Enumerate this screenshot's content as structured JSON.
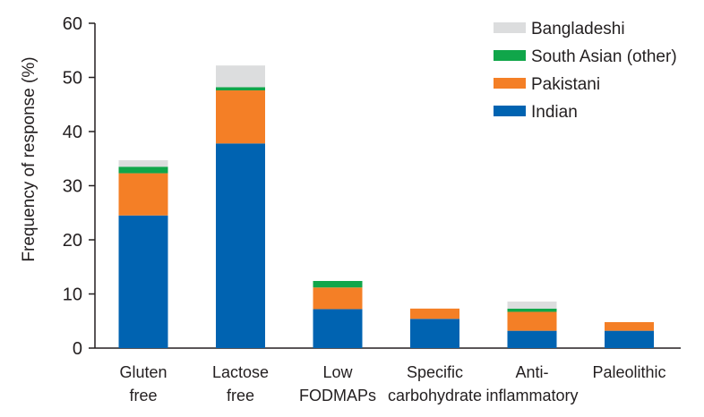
{
  "chart_data": {
    "type": "bar",
    "stacked": true,
    "title": "",
    "xlabel": "",
    "ylabel": "Frequency of response (%)",
    "ylim": [
      0,
      60
    ],
    "yticks": [
      0,
      10,
      20,
      30,
      40,
      50,
      60
    ],
    "grid": false,
    "legend_position": "top-right",
    "categories": [
      [
        "Gluten",
        "free"
      ],
      [
        "Lactose",
        "free"
      ],
      [
        "Low",
        "FODMAPs"
      ],
      [
        "Specific",
        "carbohydrate"
      ],
      [
        "Anti-",
        "inflammatory"
      ],
      [
        "Paleolithic"
      ]
    ],
    "series": [
      {
        "name": "Indian",
        "color": "#0063b1",
        "values": [
          24.5,
          37.8,
          7.2,
          5.4,
          3.2,
          3.2
        ]
      },
      {
        "name": "Pakistani",
        "color": "#f47f26",
        "values": [
          7.8,
          9.8,
          4.0,
          1.9,
          3.5,
          1.6
        ]
      },
      {
        "name": "South Asian (other)",
        "color": "#10a64a",
        "values": [
          1.2,
          0.6,
          1.2,
          0.0,
          0.6,
          0.0
        ]
      },
      {
        "name": "Bangladeshi",
        "color": "#dcddde",
        "values": [
          1.2,
          4.0,
          0.0,
          0.0,
          1.3,
          0.0
        ]
      }
    ],
    "legend_order": [
      "Bangladeshi",
      "South Asian (other)",
      "Pakistani",
      "Indian"
    ]
  }
}
